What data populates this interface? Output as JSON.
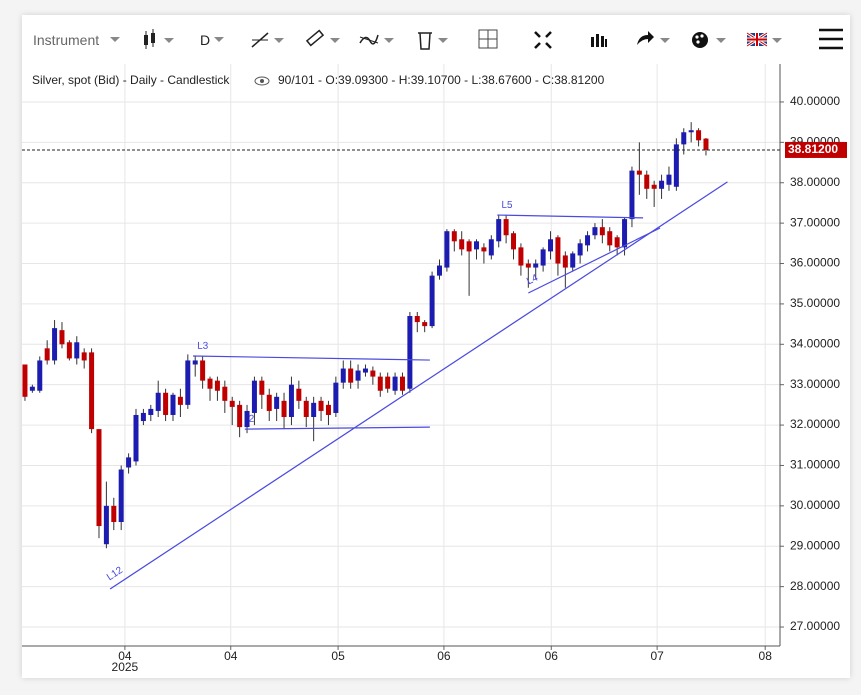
{
  "toolbar": {
    "instrument": "Instrument",
    "period": "D"
  },
  "chart_data": {
    "type": "candlestick",
    "title": "Silver, spot (Bid) - Daily - Candlestick",
    "legend": "90/101 - O:39.09300 - H:39.10700 - L:38.67600 - C:38.81200",
    "up_color": "#1c1cb0",
    "down_color": "#c00000",
    "open": [
      33.5,
      32.85,
      32.85,
      33.9,
      33.6,
      34.35,
      34.05,
      33.65,
      33.8,
      33.8,
      31.9,
      29.05,
      30.0,
      29.6,
      30.95,
      31.1,
      32.1,
      32.25,
      32.35,
      32.8,
      32.25,
      32.7,
      32.5,
      33.5,
      33.6,
      33.15,
      33.1,
      32.95,
      32.6,
      32.5,
      31.95,
      32.3,
      33.1,
      32.75,
      32.4,
      32.6,
      32.2,
      32.9,
      32.6,
      32.2,
      32.6,
      32.5,
      32.3,
      33.05,
      33.4,
      33.1,
      33.3,
      33.35,
      33.2,
      33.2,
      32.85,
      33.2,
      32.9,
      34.7,
      34.55,
      34.45,
      35.7,
      35.9,
      36.8,
      36.6,
      36.55,
      36.35,
      36.4,
      36.2,
      36.55,
      37.1,
      36.75,
      36.4,
      36.0,
      35.9,
      35.95,
      36.3,
      36.65,
      36.2,
      35.9,
      36.2,
      36.45,
      36.7,
      36.9,
      36.8,
      36.65,
      36.4,
      37.1,
      38.3,
      38.2,
      37.95,
      37.85,
      37.95,
      37.9,
      38.95,
      39.25,
      39.3,
      39.093
    ],
    "high": [
      33.5,
      33.0,
      33.7,
      34.1,
      34.6,
      34.55,
      34.1,
      34.2,
      33.9,
      33.9,
      31.9,
      30.6,
      30.2,
      31.0,
      31.3,
      32.4,
      32.4,
      32.5,
      33.1,
      32.9,
      32.8,
      32.9,
      33.75,
      33.7,
      33.7,
      33.2,
      33.2,
      33.1,
      32.7,
      32.6,
      32.5,
      33.2,
      33.2,
      32.9,
      32.8,
      32.8,
      33.2,
      33.1,
      32.7,
      32.7,
      32.7,
      32.6,
      33.2,
      33.6,
      33.6,
      33.5,
      33.5,
      33.45,
      33.3,
      33.3,
      33.3,
      33.3,
      34.8,
      34.8,
      34.6,
      35.8,
      36.1,
      36.85,
      36.85,
      36.8,
      36.6,
      36.6,
      36.5,
      36.7,
      37.2,
      37.2,
      36.8,
      36.5,
      36.1,
      36.1,
      36.4,
      36.8,
      36.7,
      36.3,
      36.3,
      36.6,
      36.8,
      37.0,
      37.1,
      36.9,
      36.7,
      37.15,
      38.4,
      39.0,
      38.3,
      38.05,
      38.2,
      38.4,
      39.1,
      39.35,
      39.5,
      39.35,
      39.107
    ],
    "low": [
      32.6,
      32.8,
      32.8,
      33.5,
      33.5,
      33.9,
      33.6,
      33.5,
      33.4,
      31.8,
      29.2,
      28.95,
      29.4,
      29.4,
      30.8,
      31.0,
      32.0,
      32.1,
      32.2,
      32.1,
      32.1,
      32.2,
      32.4,
      33.2,
      32.9,
      32.6,
      32.6,
      32.3,
      32.0,
      31.7,
      31.8,
      32.0,
      32.4,
      32.1,
      32.1,
      31.9,
      32.0,
      32.4,
      31.95,
      31.6,
      32.1,
      32.0,
      32.2,
      32.9,
      32.9,
      32.9,
      33.2,
      33.0,
      32.7,
      32.8,
      32.75,
      32.75,
      32.8,
      34.3,
      34.3,
      34.4,
      35.6,
      35.8,
      36.3,
      36.2,
      35.2,
      36.1,
      36.0,
      36.1,
      36.4,
      36.5,
      36.1,
      35.7,
      35.4,
      35.6,
      35.8,
      36.1,
      35.7,
      35.4,
      35.8,
      36.0,
      36.3,
      36.6,
      36.5,
      36.3,
      36.2,
      36.2,
      36.9,
      37.7,
      37.6,
      37.4,
      37.6,
      37.8,
      37.8,
      38.7,
      39.0,
      38.9,
      38.676
    ],
    "close": [
      32.7,
      32.95,
      33.6,
      33.6,
      34.4,
      34.0,
      33.65,
      34.05,
      33.6,
      31.9,
      29.5,
      30.0,
      29.6,
      30.9,
      31.2,
      32.25,
      32.3,
      32.4,
      32.8,
      32.25,
      32.75,
      32.5,
      33.6,
      33.6,
      33.1,
      32.9,
      32.85,
      32.6,
      32.45,
      31.95,
      32.35,
      33.1,
      32.75,
      32.35,
      32.7,
      32.2,
      33.0,
      32.6,
      32.2,
      32.55,
      32.35,
      32.25,
      33.05,
      33.4,
      33.05,
      33.35,
      33.4,
      33.2,
      32.85,
      32.9,
      33.2,
      32.85,
      34.7,
      34.55,
      34.45,
      35.7,
      35.95,
      36.8,
      36.55,
      36.35,
      36.3,
      36.55,
      36.3,
      36.6,
      37.1,
      36.7,
      36.35,
      35.95,
      35.9,
      36.0,
      36.35,
      36.6,
      36.0,
      35.9,
      36.25,
      36.5,
      36.7,
      36.9,
      36.7,
      36.45,
      36.4,
      37.1,
      38.3,
      38.2,
      37.85,
      37.85,
      38.05,
      38.2,
      38.95,
      39.25,
      39.3,
      39.05,
      38.812
    ],
    "xlim": [
      -0.4,
      102.0
    ],
    "xticks": [
      {
        "value": 13.5,
        "label": "04"
      },
      {
        "value": 27.8,
        "label": "04"
      },
      {
        "value": 42.3,
        "label": "05"
      },
      {
        "value": 56.6,
        "label": "06"
      },
      {
        "value": 71.1,
        "label": "06"
      },
      {
        "value": 85.4,
        "label": "07"
      },
      {
        "value": 100.0,
        "label": "08"
      }
    ],
    "x_year_label": "2025",
    "ylim": [
      26.53,
      40.94
    ],
    "yticks": [
      {
        "value": 27,
        "label": "27.00000"
      },
      {
        "value": 28,
        "label": "28.00000"
      },
      {
        "value": 29,
        "label": "29.00000"
      },
      {
        "value": 30,
        "label": "30.00000"
      },
      {
        "value": 31,
        "label": "31.00000"
      },
      {
        "value": 32,
        "label": "32.00000"
      },
      {
        "value": 33,
        "label": "33.00000"
      },
      {
        "value": 34,
        "label": "34.00000"
      },
      {
        "value": 35,
        "label": "35.00000"
      },
      {
        "value": 36,
        "label": "36.00000"
      },
      {
        "value": 37,
        "label": "37.00000"
      },
      {
        "value": 38,
        "label": "38.00000"
      },
      {
        "value": 39,
        "label": "39.00000"
      },
      {
        "value": 40,
        "label": "40.00000"
      }
    ],
    "grid": true,
    "last_price": {
      "value": 38.812,
      "label": "38.81200",
      "color": "#c00000"
    },
    "drawing_color": "#4a4ae0",
    "drawings": [
      {
        "label": "L12",
        "x": [
          11.5,
          94.9
        ],
        "y": [
          27.94,
          38.02
        ]
      },
      {
        "label": "L3",
        "x": [
          22.7,
          54.7
        ],
        "y": [
          33.71,
          33.61
        ]
      },
      {
        "label": "2",
        "x": [
          29.7,
          54.7
        ],
        "y": [
          31.9,
          31.95
        ]
      },
      {
        "label": "L5",
        "x": [
          63.8,
          83.5
        ],
        "y": [
          37.2,
          37.13
        ]
      },
      {
        "label": "L4",
        "x": [
          68.0,
          85.8
        ],
        "y": [
          35.27,
          36.88
        ]
      }
    ]
  }
}
